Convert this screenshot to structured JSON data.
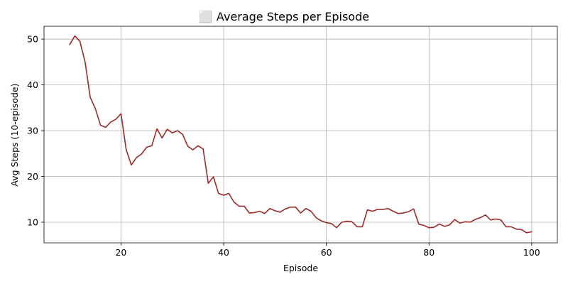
{
  "chart_data": {
    "type": "line",
    "title": "⬜ Average Steps per Episode",
    "xlabel": "Episode",
    "ylabel": "Avg Steps (10-episode)",
    "xlim": [
      5,
      105
    ],
    "ylim": [
      5.5,
      52.8
    ],
    "xticks": [
      20,
      40,
      60,
      80,
      100
    ],
    "yticks": [
      10,
      20,
      30,
      40,
      50
    ],
    "grid": true,
    "series": [
      {
        "color": "#9b2a2a",
        "x": [
          10,
          11,
          12,
          13,
          14,
          15,
          16,
          17,
          18,
          19,
          20,
          21,
          22,
          23,
          24,
          25,
          26,
          27,
          28,
          29,
          30,
          31,
          32,
          33,
          34,
          35,
          36,
          37,
          38,
          39,
          40,
          41,
          42,
          43,
          44,
          45,
          46,
          47,
          48,
          49,
          50,
          51,
          52,
          53,
          54,
          55,
          56,
          57,
          58,
          59,
          60,
          61,
          62,
          63,
          64,
          65,
          66,
          67,
          68,
          69,
          70,
          71,
          72,
          73,
          74,
          75,
          76,
          77,
          78,
          79,
          80,
          81,
          82,
          83,
          84,
          85,
          86,
          87,
          88,
          89,
          90,
          91,
          92,
          93,
          94,
          95,
          96,
          97,
          98,
          99,
          100
        ],
        "y": [
          48.8,
          50.7,
          49.5,
          45.0,
          37.3,
          34.8,
          31.2,
          30.7,
          31.9,
          32.5,
          33.7,
          25.9,
          22.5,
          24.1,
          24.9,
          26.4,
          26.7,
          30.4,
          28.4,
          30.3,
          29.5,
          30.0,
          29.2,
          26.6,
          25.8,
          26.7,
          26.0,
          18.5,
          19.9,
          16.3,
          15.9,
          16.3,
          14.4,
          13.5,
          13.5,
          12.0,
          12.1,
          12.4,
          11.9,
          13.0,
          12.5,
          12.2,
          12.9,
          13.3,
          13.3,
          12.0,
          13.0,
          12.4,
          11.0,
          10.3,
          9.9,
          9.7,
          8.8,
          10.0,
          10.2,
          10.1,
          9.0,
          9.0,
          12.7,
          12.4,
          12.8,
          12.8,
          13.0,
          12.4,
          11.9,
          12.0,
          12.3,
          12.9,
          9.6,
          9.3,
          8.8,
          8.9,
          9.6,
          9.1,
          9.4,
          10.6,
          9.8,
          10.1,
          10.0,
          10.6,
          11.0,
          11.6,
          10.5,
          10.7,
          10.5,
          9.0,
          9.0,
          8.5,
          8.4,
          7.7,
          7.9
        ]
      }
    ]
  }
}
